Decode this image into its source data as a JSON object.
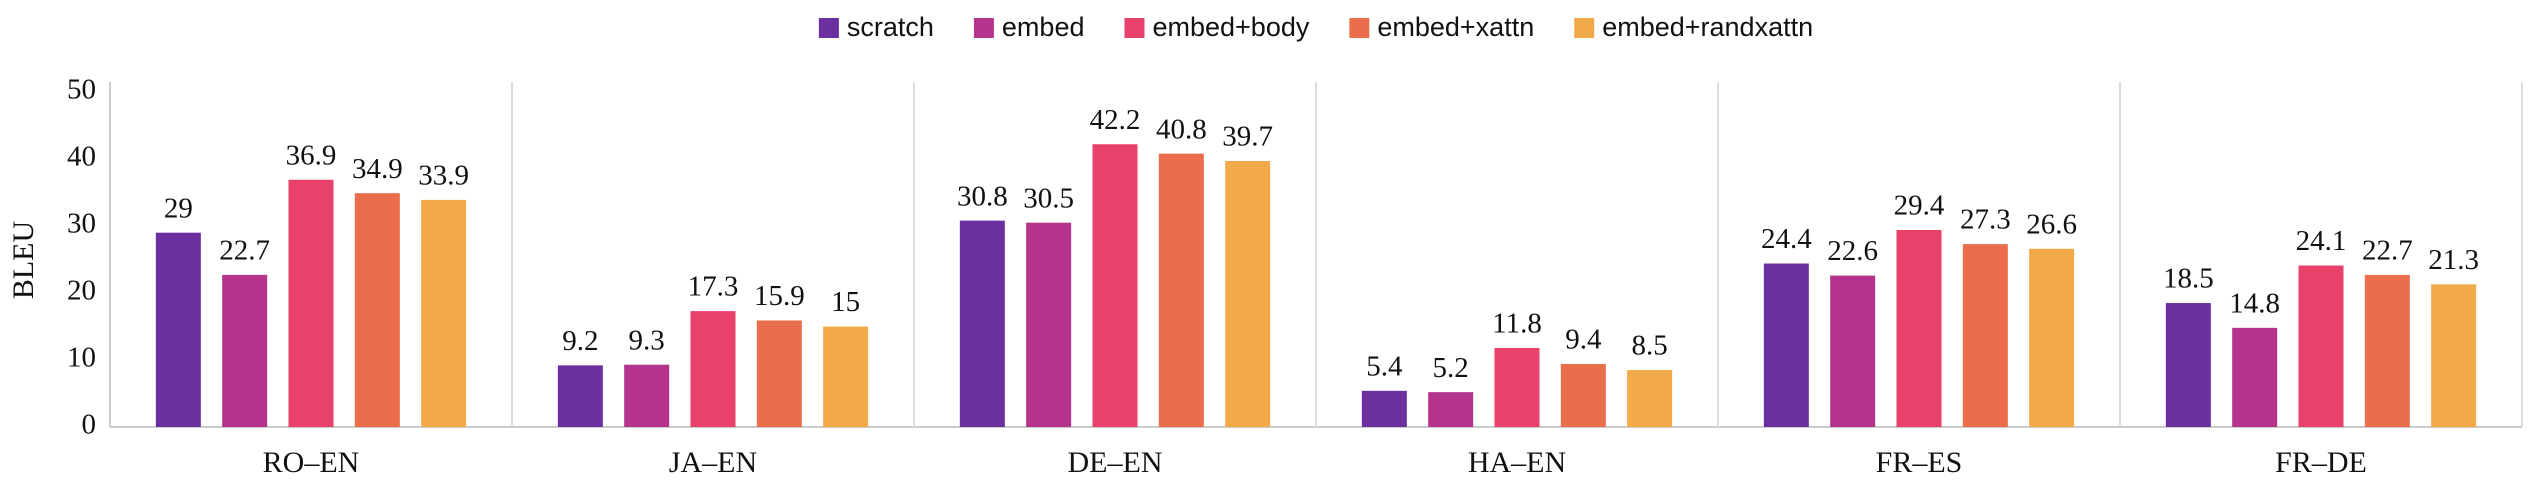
{
  "chart_data": {
    "type": "bar",
    "ylabel": "BLEU",
    "categories": [
      "RO–EN",
      "JA–EN",
      "DE–EN",
      "HA–EN",
      "FR–ES",
      "FR–DE"
    ],
    "series": [
      {
        "name": "scratch",
        "color": "#6b2fa0",
        "values": [
          29,
          9.2,
          30.8,
          5.4,
          24.4,
          18.5
        ]
      },
      {
        "name": "embed",
        "color": "#b5348b",
        "values": [
          22.7,
          9.3,
          30.5,
          5.2,
          22.6,
          14.8
        ]
      },
      {
        "name": "embed+body",
        "color": "#e8416a",
        "values": [
          36.9,
          17.3,
          42.2,
          11.8,
          29.4,
          24.1
        ]
      },
      {
        "name": "embed+xattn",
        "color": "#eb6e4c",
        "values": [
          34.9,
          15.9,
          40.8,
          9.4,
          27.3,
          22.7
        ]
      },
      {
        "name": "embed+randxattn",
        "color": "#f3aa4a",
        "values": [
          33.9,
          15,
          39.7,
          8.5,
          26.6,
          21.3
        ]
      }
    ],
    "ylim": [
      0,
      50
    ],
    "yticks": [
      0,
      10,
      20,
      30,
      40,
      50
    ],
    "grid": false,
    "legend": "top"
  }
}
